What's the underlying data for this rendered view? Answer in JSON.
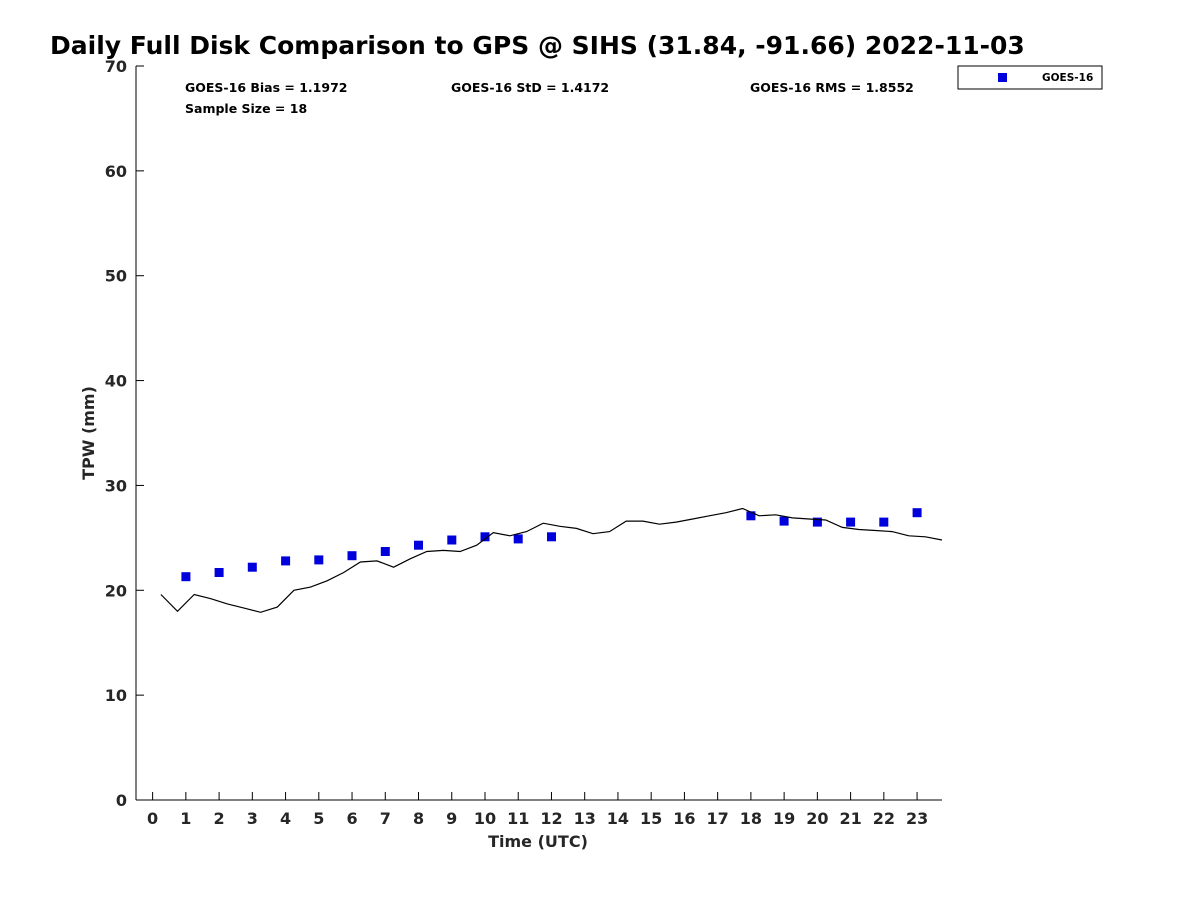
{
  "chart_data": {
    "type": "scatter",
    "title": "Daily Full Disk Comparison to GPS @ SIHS (31.84, -91.66) 2022-11-03",
    "xlabel": "Time (UTC)",
    "ylabel": "TPW (mm)",
    "xlim": [
      -0.5,
      23.75
    ],
    "ylim": [
      0,
      70
    ],
    "xticks": [
      "0",
      "1",
      "2",
      "3",
      "4",
      "5",
      "6",
      "7",
      "8",
      "9",
      "10",
      "11",
      "12",
      "13",
      "14",
      "15",
      "16",
      "17",
      "18",
      "19",
      "20",
      "21",
      "22",
      "23"
    ],
    "yticks": [
      "0",
      "10",
      "20",
      "30",
      "40",
      "50",
      "60",
      "70"
    ],
    "grid": false,
    "legend": {
      "position": "outside-top-right",
      "entries": [
        "GOES-16"
      ]
    },
    "stats": {
      "bias": "GOES-16 Bias = 1.1972",
      "std": "GOES-16 StD = 1.4172",
      "rms": "GOES-16 RMS = 1.8552",
      "sample": "Sample Size = 18"
    },
    "series": [
      {
        "name": "GOES-16",
        "kind": "marker",
        "color": "#0000dd",
        "x": [
          1,
          2,
          3,
          4,
          5,
          6,
          7,
          8,
          9,
          10,
          11,
          12,
          18,
          19,
          20,
          21,
          22,
          23
        ],
        "y": [
          21.3,
          21.7,
          22.2,
          22.8,
          22.9,
          23.3,
          23.7,
          24.3,
          24.8,
          25.1,
          24.9,
          25.1,
          27.1,
          26.6,
          26.5,
          26.5,
          26.5,
          27.4
        ]
      },
      {
        "kind": "line",
        "color": "#000000",
        "x": [
          0.25,
          0.75,
          1.25,
          1.75,
          2.25,
          2.75,
          3.25,
          3.75,
          4.25,
          4.75,
          5.25,
          5.75,
          6.25,
          6.75,
          7.25,
          7.75,
          8.25,
          8.75,
          9.25,
          9.75,
          10.25,
          10.75,
          11.25,
          11.75,
          12.25,
          12.75,
          13.25,
          13.75,
          14.25,
          14.75,
          15.25,
          15.75,
          16.25,
          16.75,
          17.25,
          17.75,
          18.25,
          18.75,
          19.25,
          19.75,
          20.25,
          20.75,
          21.25,
          21.75,
          22.25,
          22.75,
          23.25,
          23.75
        ],
        "y": [
          19.6,
          18.0,
          19.6,
          19.2,
          18.7,
          18.3,
          17.9,
          18.4,
          20.0,
          20.3,
          20.9,
          21.7,
          22.7,
          22.8,
          22.2,
          23.0,
          23.7,
          23.8,
          23.7,
          24.3,
          25.5,
          25.2,
          25.6,
          26.4,
          26.1,
          25.9,
          25.4,
          25.6,
          26.6,
          26.6,
          26.3,
          26.5,
          26.8,
          27.1,
          27.4,
          27.8,
          27.1,
          27.2,
          26.9,
          26.8,
          26.7,
          26.0,
          25.8,
          25.7,
          25.6,
          25.2,
          25.1,
          24.8
        ]
      }
    ]
  }
}
